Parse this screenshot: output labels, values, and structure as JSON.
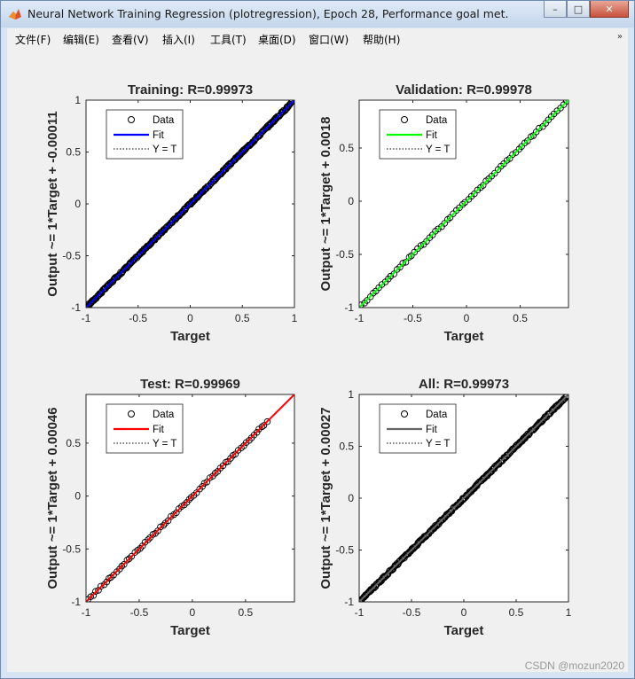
{
  "window": {
    "title": "Neural Network Training Regression (plotregression), Epoch 28, Performance goal met.",
    "controls": {
      "minimize": "–",
      "maximize": "□",
      "close": "✕"
    }
  },
  "menubar": {
    "items": [
      "文件(F)",
      "编辑(E)",
      "查看(V)",
      "插入(I)",
      "工具(T)",
      "桌面(D)",
      "窗口(W)",
      "帮助(H)"
    ],
    "overflow_icon": "double-chevron-icon"
  },
  "legend_labels": {
    "data": "Data",
    "fit": "Fit",
    "yt": "Y = T"
  },
  "watermark": "CSDN @mozun2020",
  "colors": {
    "training": "#0000ff",
    "validation": "#00ff00",
    "test": "#ff0000",
    "all": "#666666",
    "data_marker": "#000000"
  },
  "chart_data": [
    {
      "type": "scatter",
      "name": "training",
      "title": "Training: R=0.99973",
      "xlabel": "Target",
      "ylabel": "Output ~= 1*Target + -0.00011",
      "xlim": [
        -1,
        1
      ],
      "ylim": [
        -1,
        1
      ],
      "xticks": [
        "-1",
        "-0.5",
        "0",
        "0.5",
        "1"
      ],
      "yticks": [
        "-1",
        "-0.5",
        "0",
        "0.5",
        "1"
      ],
      "fit": {
        "slope": 1,
        "intercept": -0.00011,
        "color": "#0000ff"
      },
      "data_range": [
        -1,
        0.98
      ],
      "legend": "top-left",
      "grid": false
    },
    {
      "type": "scatter",
      "name": "validation",
      "title": "Validation: R=0.99978",
      "xlabel": "Target",
      "ylabel": "Output ~= 1*Target + 0.0018",
      "xlim": [
        -1,
        0.95
      ],
      "ylim": [
        -1,
        0.95
      ],
      "xticks": [
        "-1",
        "-0.5",
        "0",
        "0.5"
      ],
      "yticks": [
        "-1",
        "-0.5",
        "0",
        "0.5"
      ],
      "fit": {
        "slope": 1,
        "intercept": 0.0018,
        "color": "#00ff00"
      },
      "data_range": [
        -0.98,
        0.93
      ],
      "legend": "top-left",
      "grid": false
    },
    {
      "type": "scatter",
      "name": "test",
      "title": "Test: R=0.99969",
      "xlabel": "Target",
      "ylabel": "Output ~= 1*Target + 0.00046",
      "xlim": [
        -1,
        0.96
      ],
      "ylim": [
        -1,
        0.96
      ],
      "xticks": [
        "-1",
        "-0.5",
        "0",
        "0.5"
      ],
      "yticks": [
        "-1",
        "-0.5",
        "0",
        "0.5"
      ],
      "fit": {
        "slope": 1,
        "intercept": 0.00046,
        "color": "#ff0000"
      },
      "data_range": [
        -0.98,
        0.7
      ],
      "legend": "top-left",
      "grid": false
    },
    {
      "type": "scatter",
      "name": "all",
      "title": "All: R=0.99973",
      "xlabel": "Target",
      "ylabel": "Output ~= 1*Target + 0.00027",
      "xlim": [
        -1,
        1
      ],
      "ylim": [
        -1,
        1
      ],
      "xticks": [
        "-1",
        "-0.5",
        "0",
        "0.5",
        "1"
      ],
      "yticks": [
        "-1",
        "-0.5",
        "0",
        "0.5",
        "1"
      ],
      "fit": {
        "slope": 1,
        "intercept": 0.00027,
        "color": "#666666"
      },
      "data_range": [
        -1,
        0.98
      ],
      "legend": "top-left",
      "grid": false
    }
  ]
}
